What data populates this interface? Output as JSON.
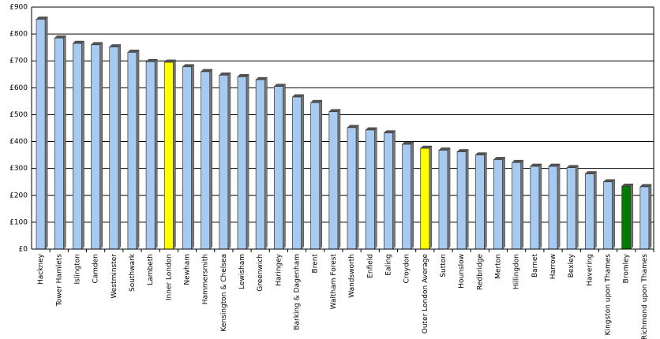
{
  "chart_data": {
    "type": "bar",
    "categories": [
      "Hackney",
      "Tower Hamlets",
      "Islington",
      "Camden",
      "Westminster",
      "Southwark",
      "Lambeth",
      "Inner London",
      "Newham",
      "Hammersmith",
      "Kensington & Chelsea",
      "Lewisham",
      "Greenwich",
      "Haringey",
      "Barking & Dagenham",
      "Brent",
      "Waltham Forest",
      "Wandsworth",
      "Enfield",
      "Ealing",
      "Croydon",
      "Outer London Average",
      "Sutton",
      "Hounslow",
      "Redbridge",
      "Merton",
      "Hillingdon",
      "Barnet",
      "Harrow",
      "Bexley",
      "Havering",
      "Kingston upon Thames",
      "Bromley",
      "Richmond upon Thames"
    ],
    "values": [
      855,
      785,
      765,
      760,
      752,
      732,
      697,
      695,
      678,
      660,
      647,
      641,
      630,
      605,
      566,
      545,
      511,
      452,
      443,
      432,
      390,
      375,
      368,
      362,
      350,
      333,
      322,
      308,
      308,
      303,
      280,
      250,
      234,
      232
    ],
    "colors": [
      "#a6caf0",
      "#a6caf0",
      "#a6caf0",
      "#a6caf0",
      "#a6caf0",
      "#a6caf0",
      "#a6caf0",
      "#ffff00",
      "#a6caf0",
      "#a6caf0",
      "#a6caf0",
      "#a6caf0",
      "#a6caf0",
      "#a6caf0",
      "#a6caf0",
      "#a6caf0",
      "#a6caf0",
      "#a6caf0",
      "#a6caf0",
      "#a6caf0",
      "#a6caf0",
      "#ffff00",
      "#a6caf0",
      "#a6caf0",
      "#a6caf0",
      "#a6caf0",
      "#a6caf0",
      "#a6caf0",
      "#a6caf0",
      "#a6caf0",
      "#a6caf0",
      "#a6caf0",
      "#007a00",
      "#a6caf0"
    ],
    "ylim": [
      0,
      900
    ],
    "yticks": [
      {
        "value": 0,
        "label": "£0"
      },
      {
        "value": 100,
        "label": "£100"
      },
      {
        "value": 200,
        "label": "£200"
      },
      {
        "value": 300,
        "label": "£300"
      },
      {
        "value": 400,
        "label": "£400"
      },
      {
        "value": 500,
        "label": "£500"
      },
      {
        "value": 600,
        "label": "£600"
      },
      {
        "value": 700,
        "label": "£700"
      },
      {
        "value": 800,
        "label": "£800"
      },
      {
        "value": 900,
        "label": "£900"
      }
    ],
    "grid": true
  }
}
